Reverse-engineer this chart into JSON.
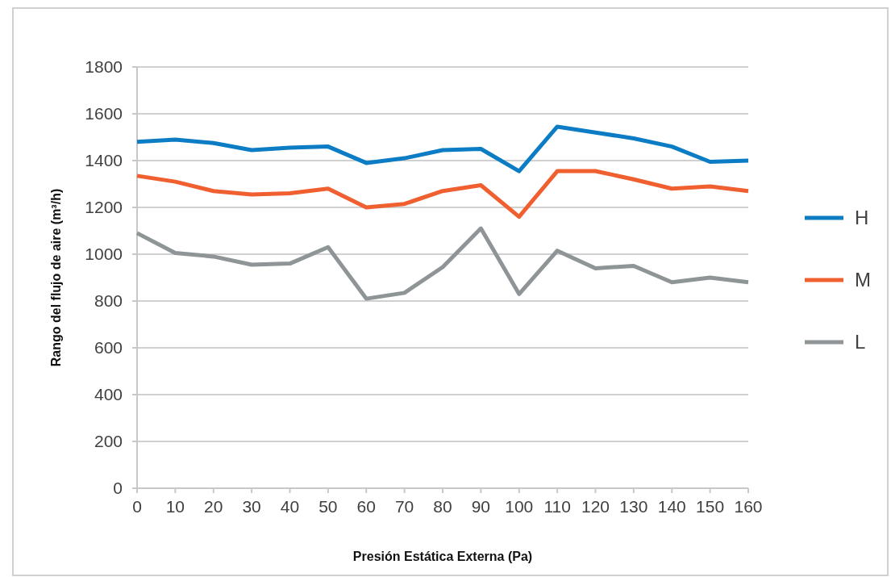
{
  "chart_data": {
    "type": "line",
    "xlabel": "Presión Estática Externa (Pa)",
    "ylabel": "Rango del flujo de aire (m³/h)",
    "x": [
      0,
      10,
      20,
      30,
      40,
      50,
      60,
      70,
      80,
      90,
      100,
      110,
      120,
      130,
      140,
      150,
      160
    ],
    "xlim": [
      0,
      160
    ],
    "xticks": [
      0,
      10,
      20,
      30,
      40,
      50,
      60,
      70,
      80,
      90,
      100,
      110,
      120,
      130,
      140,
      150,
      160
    ],
    "ylim": [
      0,
      1800
    ],
    "yticks": [
      0,
      200,
      400,
      600,
      800,
      1000,
      1200,
      1400,
      1600,
      1800
    ],
    "grid": "y",
    "legend": "right",
    "marker": "none",
    "line_style": "solid",
    "series": [
      {
        "name": "H",
        "color": "#0c7cc4",
        "values": [
          1480,
          1490,
          1475,
          1445,
          1455,
          1460,
          1390,
          1410,
          1445,
          1450,
          1355,
          1545,
          1520,
          1495,
          1460,
          1395,
          1400
        ]
      },
      {
        "name": "M",
        "color": "#f05f30",
        "values": [
          1335,
          1310,
          1270,
          1255,
          1260,
          1280,
          1200,
          1215,
          1270,
          1295,
          1160,
          1355,
          1355,
          1320,
          1280,
          1290,
          1270
        ]
      },
      {
        "name": "L",
        "color": "#8f9496",
        "values": [
          1090,
          1005,
          990,
          955,
          960,
          1030,
          810,
          835,
          945,
          1110,
          830,
          1015,
          940,
          950,
          880,
          900,
          880
        ]
      }
    ]
  }
}
